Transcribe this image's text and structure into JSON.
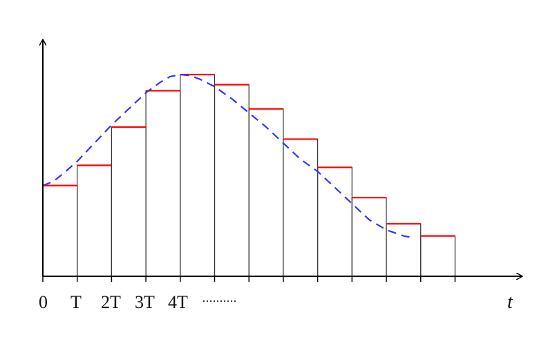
{
  "chart_data": {
    "type": "step",
    "xlabel": "t",
    "tick_labels": [
      "0",
      "T",
      "2T",
      "3T",
      "4T"
    ],
    "ellipsis": "··········",
    "sample_values": [
      0.45,
      0.55,
      0.74,
      0.92,
      1.0,
      0.95,
      0.83,
      0.68,
      0.54,
      0.39,
      0.26,
      0.2
    ],
    "continuous_curve": [
      [
        0,
        0.45
      ],
      [
        0.3,
        0.47
      ],
      [
        0.6,
        0.51
      ],
      [
        1.0,
        0.57
      ],
      [
        1.5,
        0.66
      ],
      [
        2.0,
        0.75
      ],
      [
        2.5,
        0.83
      ],
      [
        3.0,
        0.91
      ],
      [
        3.4,
        0.96
      ],
      [
        3.7,
        0.99
      ],
      [
        4.0,
        1.0
      ],
      [
        4.3,
        0.995
      ],
      [
        4.6,
        0.975
      ],
      [
        5.0,
        0.94
      ],
      [
        5.5,
        0.88
      ],
      [
        6.0,
        0.81
      ],
      [
        6.5,
        0.74
      ],
      [
        7.0,
        0.66
      ],
      [
        7.5,
        0.58
      ],
      [
        8.0,
        0.52
      ],
      [
        8.5,
        0.44
      ],
      [
        9.0,
        0.36
      ],
      [
        9.5,
        0.28
      ],
      [
        10.0,
        0.23
      ],
      [
        10.5,
        0.2
      ],
      [
        10.8,
        0.19
      ]
    ],
    "xlim": [
      0,
      12
    ],
    "ylim": [
      0,
      1.1
    ],
    "colors": {
      "step_level": "#ff0000",
      "continuous_curve": "#3333ff",
      "axes": "#000000",
      "bar_outline": "#333333"
    }
  }
}
